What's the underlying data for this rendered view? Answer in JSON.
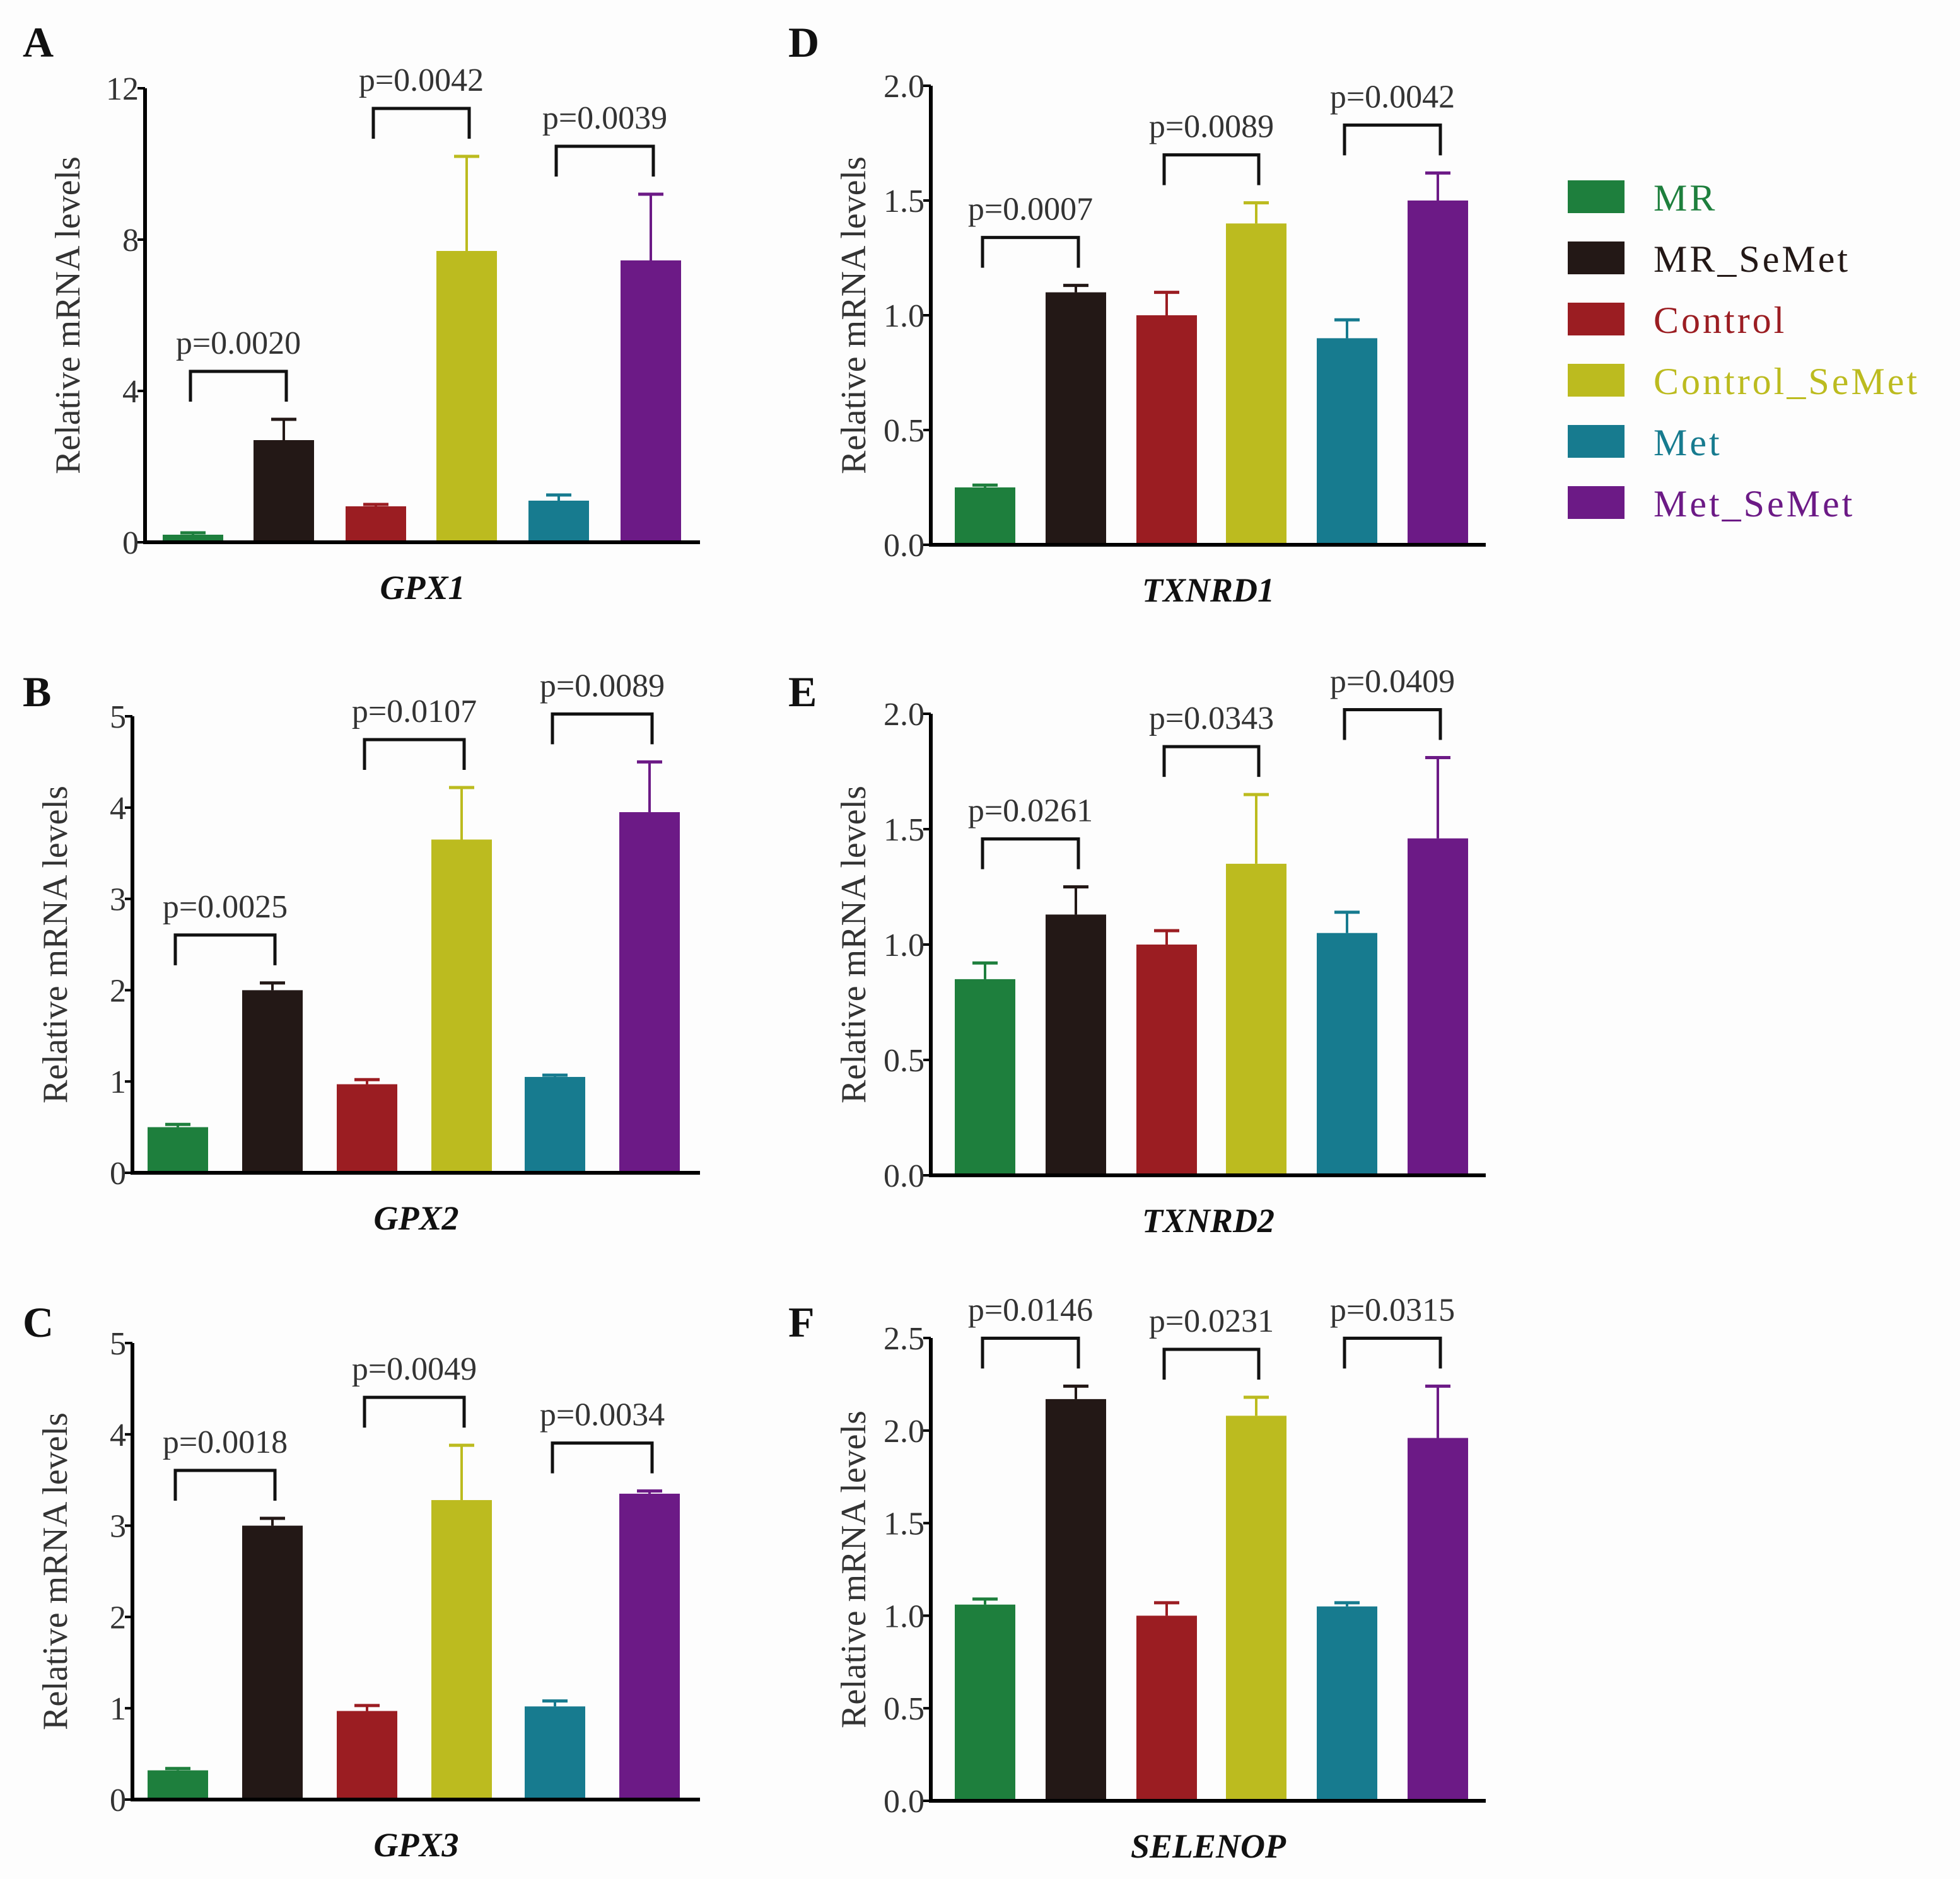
{
  "chart_data": [
    {
      "panel": "A",
      "type": "bar",
      "title": "",
      "xlabel": "GPX1",
      "ylabel": "Relative mRNA levels",
      "ylim": [
        0,
        12
      ],
      "yticks": [
        0,
        4,
        8,
        12
      ],
      "tick_decimals": 0,
      "categories": [
        "MR",
        "MR_SeMet",
        "Control",
        "Control_SeMet",
        "Met",
        "Met_SeMet"
      ],
      "values": [
        0.2,
        2.7,
        0.95,
        7.7,
        1.1,
        7.45
      ],
      "errors": [
        0.05,
        0.55,
        0.05,
        2.5,
        0.15,
        1.75
      ],
      "comparisons": [
        {
          "pair": [
            0,
            1
          ],
          "label": "p=0.0020"
        },
        {
          "pair": [
            2,
            3
          ],
          "label": "p=0.0042"
        },
        {
          "pair": [
            4,
            5
          ],
          "label": "p=0.0039"
        }
      ]
    },
    {
      "panel": "B",
      "type": "bar",
      "title": "",
      "xlabel": "GPX2",
      "ylabel": "Relative mRNA levels",
      "ylim": [
        0,
        5
      ],
      "yticks": [
        0,
        1,
        2,
        3,
        4,
        5
      ],
      "tick_decimals": 0,
      "categories": [
        "MR",
        "MR_SeMet",
        "Control",
        "Control_SeMet",
        "Met",
        "Met_SeMet"
      ],
      "values": [
        0.5,
        2.0,
        0.97,
        3.65,
        1.05,
        3.95
      ],
      "errors": [
        0.03,
        0.08,
        0.05,
        0.57,
        0.02,
        0.55
      ],
      "comparisons": [
        {
          "pair": [
            0,
            1
          ],
          "label": "p=0.0025"
        },
        {
          "pair": [
            2,
            3
          ],
          "label": "p=0.0107"
        },
        {
          "pair": [
            4,
            5
          ],
          "label": "p=0.0089"
        }
      ]
    },
    {
      "panel": "C",
      "type": "bar",
      "title": "",
      "xlabel": "GPX3",
      "ylabel": "Relative mRNA levels",
      "ylim": [
        0,
        5
      ],
      "yticks": [
        0,
        1,
        2,
        3,
        4,
        5
      ],
      "tick_decimals": 0,
      "categories": [
        "MR",
        "MR_SeMet",
        "Control",
        "Control_SeMet",
        "Met",
        "Met_SeMet"
      ],
      "values": [
        0.32,
        3.0,
        0.97,
        3.28,
        1.02,
        3.35
      ],
      "errors": [
        0.02,
        0.08,
        0.06,
        0.6,
        0.06,
        0.03
      ],
      "comparisons": [
        {
          "pair": [
            0,
            1
          ],
          "label": "p=0.0018"
        },
        {
          "pair": [
            2,
            3
          ],
          "label": "p=0.0049"
        },
        {
          "pair": [
            4,
            5
          ],
          "label": "p=0.0034"
        }
      ]
    },
    {
      "panel": "D",
      "type": "bar",
      "title": "",
      "xlabel": "TXNRD1",
      "ylabel": "Relative mRNA levels",
      "ylim": [
        0,
        2.0
      ],
      "yticks": [
        0,
        0.5,
        1.0,
        1.5,
        2.0
      ],
      "tick_decimals": 1,
      "categories": [
        "MR",
        "MR_SeMet",
        "Control",
        "Control_SeMet",
        "Met",
        "Met_SeMet"
      ],
      "values": [
        0.25,
        1.1,
        1.0,
        1.4,
        0.9,
        1.5
      ],
      "errors": [
        0.01,
        0.03,
        0.1,
        0.09,
        0.08,
        0.12
      ],
      "comparisons": [
        {
          "pair": [
            0,
            1
          ],
          "label": "p=0.0007"
        },
        {
          "pair": [
            2,
            3
          ],
          "label": "p=0.0089"
        },
        {
          "pair": [
            4,
            5
          ],
          "label": "p=0.0042"
        }
      ]
    },
    {
      "panel": "E",
      "type": "bar",
      "title": "",
      "xlabel": "TXNRD2",
      "ylabel": "Relative mRNA levels",
      "ylim": [
        0,
        2.0
      ],
      "yticks": [
        0,
        0.5,
        1.0,
        1.5,
        2.0
      ],
      "tick_decimals": 1,
      "categories": [
        "MR",
        "MR_SeMet",
        "Control",
        "Control_SeMet",
        "Met",
        "Met_SeMet"
      ],
      "values": [
        0.85,
        1.13,
        1.0,
        1.35,
        1.05,
        1.46
      ],
      "errors": [
        0.07,
        0.12,
        0.06,
        0.3,
        0.09,
        0.35
      ],
      "comparisons": [
        {
          "pair": [
            0,
            1
          ],
          "label": "p=0.0261"
        },
        {
          "pair": [
            2,
            3
          ],
          "label": "p=0.0343"
        },
        {
          "pair": [
            4,
            5
          ],
          "label": "p=0.0409"
        }
      ]
    },
    {
      "panel": "F",
      "type": "bar",
      "title": "",
      "xlabel": "SELENOP",
      "ylabel": "Relative mRNA levels",
      "ylim": [
        0,
        2.5
      ],
      "yticks": [
        0,
        0.5,
        1.0,
        1.5,
        2.0,
        2.5
      ],
      "tick_decimals": 1,
      "categories": [
        "MR",
        "MR_SeMet",
        "Control",
        "Control_SeMet",
        "Met",
        "Met_SeMet"
      ],
      "values": [
        1.06,
        2.17,
        1.0,
        2.08,
        1.05,
        1.96
      ],
      "errors": [
        0.03,
        0.07,
        0.07,
        0.1,
        0.02,
        0.28
      ],
      "comparisons": [
        {
          "pair": [
            0,
            1
          ],
          "label": "p=0.0146"
        },
        {
          "pair": [
            2,
            3
          ],
          "label": "p=0.0231"
        },
        {
          "pair": [
            4,
            5
          ],
          "label": "p=0.0315"
        }
      ]
    }
  ],
  "legend": {
    "placement": "right",
    "items": [
      {
        "label": "MR",
        "color": "#1e7f3d"
      },
      {
        "label": "MR_SeMet",
        "color": "#231816"
      },
      {
        "label": "Control",
        "color": "#9b1d22"
      },
      {
        "label": "Control_SeMet",
        "color": "#bcbb1f"
      },
      {
        "label": "Met",
        "color": "#177b8f"
      },
      {
        "label": "Met_SeMet",
        "color": "#6c1a86"
      }
    ]
  }
}
